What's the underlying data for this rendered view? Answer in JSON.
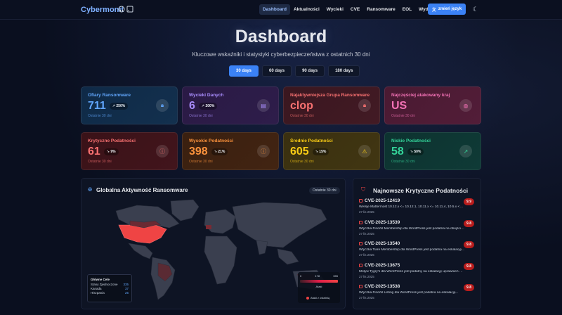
{
  "nav": {
    "brand": "Cybermonit",
    "links": [
      "Dashboard",
      "Aktualności",
      "Wycieki",
      "CVE",
      "Ransomware",
      "EOL",
      "Wydania"
    ],
    "lang_button": "zmień język"
  },
  "hero": {
    "title": "Dashboard",
    "subtitle": "Kluczowe wskaźniki i statystyki cyberbezpieczeństwa z ostatnich 30 dni",
    "ranges": [
      "30 days",
      "60 days",
      "90 days",
      "180 days"
    ],
    "active_range": "30 days"
  },
  "cards": [
    {
      "label": "Ofiary Ransomware",
      "value": "711",
      "badge": "↗ 250%",
      "sub": "Ostatnie 30 dni",
      "icon": "lock-icon",
      "color": "#60a5fa"
    },
    {
      "label": "Wycieki Danych",
      "value": "6",
      "badge": "↗ 200%",
      "sub": "Ostatnie 30 dni",
      "icon": "database-icon",
      "color": "#a78bfa"
    },
    {
      "label": "Najaktywniejsza Grupa Ransomware",
      "value": "clop",
      "badge": "",
      "sub": "Ostatnie 30 dni",
      "icon": "lock-icon",
      "color": "#f87171"
    },
    {
      "label": "Najczęściej atakowany kraj",
      "value": "US",
      "badge": "",
      "sub": "Ostatnie 30 dni",
      "icon": "globe-icon",
      "color": "#f472b6"
    },
    {
      "label": "Krytyczne Podatności",
      "value": "61",
      "badge": "↘ 9%",
      "sub": "Ostatnie 30 dni",
      "icon": "alert-circle-icon",
      "color": "#f87171"
    },
    {
      "label": "Wysokie Podatności",
      "value": "398",
      "badge": "↘ 21%",
      "sub": "Ostatnie 30 dni",
      "icon": "alert-circle-icon",
      "color": "#fb923c"
    },
    {
      "label": "Średnie Podatności",
      "value": "605",
      "badge": "↘ 15%",
      "sub": "Ostatnie 30 dni",
      "icon": "warning-icon",
      "color": "#facc15"
    },
    {
      "label": "Niskie Podatności",
      "value": "58",
      "badge": "↘ 50%",
      "sub": "Ostatnie 30 dni",
      "icon": "trend-icon",
      "color": "#34d399"
    }
  ],
  "map": {
    "title": "Globalna Aktywność Ransomware",
    "period": "Ostatnie 30 dni",
    "legend_title": "Główne Cele",
    "targets": [
      {
        "country": "Stany Zjednoczone",
        "count": "335"
      },
      {
        "country": "Kanada",
        "count": "37"
      },
      {
        "country": "Hiszpania",
        "count": "25"
      }
    ],
    "scale_ticks": [
      "0",
      "178",
      "355"
    ],
    "scale_label": "Ataki",
    "attack_label": "Ataki z ostatnią"
  },
  "cves": {
    "title": "Najnowsze Krytyczne Podatności",
    "items": [
      {
        "id": "CVE-2025-12419",
        "score": "9.9",
        "desc": "Wersje Mattermost 10.12.x <= 10.12.1, 10.11.x <= 10.11.4, 10.5.x <=...",
        "date": "27 lis 2025"
      },
      {
        "id": "CVE-2025-13539",
        "score": "9.8",
        "desc": "Wtyczka FindAll Membership dla WordPress jest podatna na obejście...",
        "date": "27 lis 2025"
      },
      {
        "id": "CVE-2025-13540",
        "score": "9.8",
        "desc": "Wtyczka Tiare Membership dla WordPress jest podatna na eskalację...",
        "date": "27 lis 2025"
      },
      {
        "id": "CVE-2025-13675",
        "score": "9.8",
        "desc": "Motyw Tygry's dla WordPress jest podatny na eskalację uprawnień we...",
        "date": "27 lis 2025"
      },
      {
        "id": "CVE-2025-13538",
        "score": "9.8",
        "desc": "Wtyczka FindAll Listing dla WordPress jest podatna na eskalację...",
        "date": "27 lis 2025"
      }
    ]
  }
}
